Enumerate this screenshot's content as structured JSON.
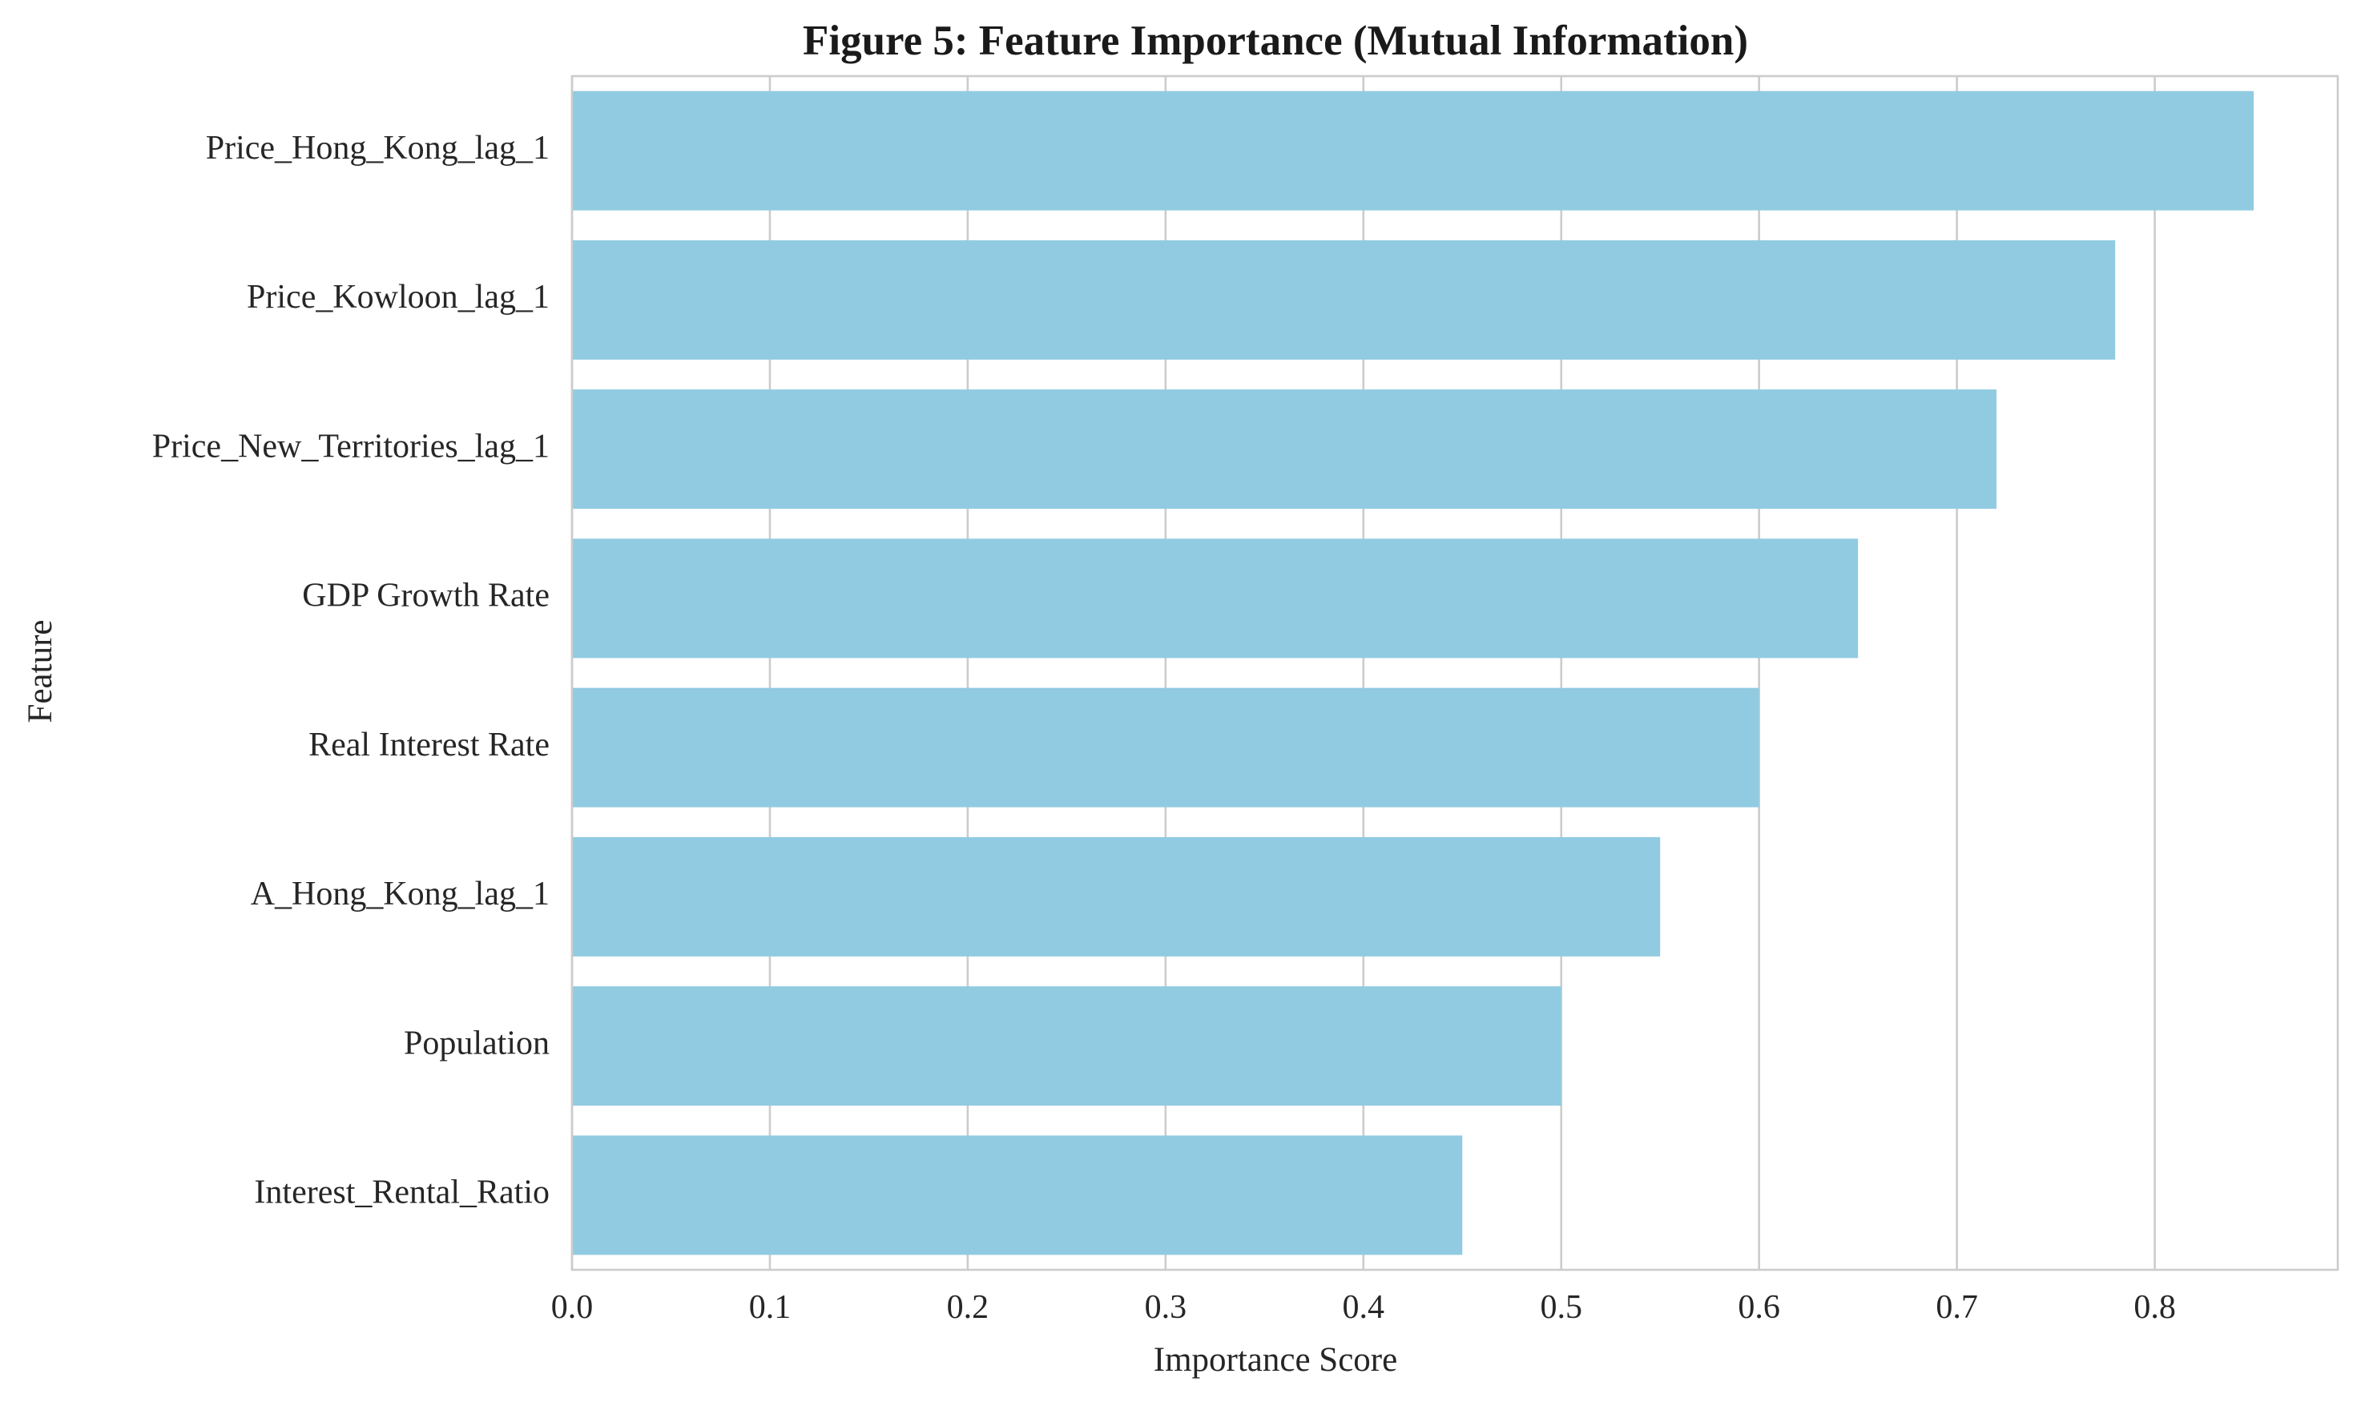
{
  "chart_data": {
    "type": "bar",
    "orientation": "horizontal",
    "title": "Figure 5: Feature Importance (Mutual Information)",
    "xlabel": "Importance Score",
    "ylabel": "Feature",
    "categories": [
      "Price_Hong_Kong_lag_1",
      "Price_Kowloon_lag_1",
      "Price_New_Territories_lag_1",
      "GDP Growth Rate",
      "Real Interest Rate",
      "A_Hong_Kong_lag_1",
      "Population",
      "Interest_Rental_Ratio"
    ],
    "values": [
      0.85,
      0.78,
      0.72,
      0.65,
      0.6,
      0.55,
      0.5,
      0.45
    ],
    "xlim": [
      0,
      0.8925
    ],
    "xticks": [
      "0.0",
      "0.1",
      "0.2",
      "0.3",
      "0.4",
      "0.5",
      "0.6",
      "0.7",
      "0.8"
    ],
    "grid": true,
    "legend": false,
    "bar_color": "#91cbe1",
    "grid_color": "#cccccc",
    "spine_color": "#cccccc"
  }
}
